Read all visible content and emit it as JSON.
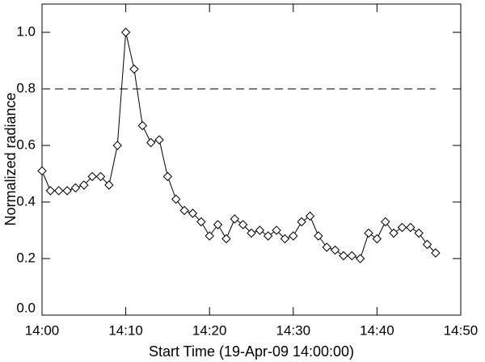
{
  "chart_data": {
    "type": "line",
    "xlabel": "Start Time (19-Apr-09 14:00:00)",
    "ylabel": "Normalized radiance",
    "x": [
      "14:00",
      "14:01",
      "14:02",
      "14:03",
      "14:04",
      "14:05",
      "14:06",
      "14:07",
      "14:08",
      "14:09",
      "14:10",
      "14:11",
      "14:12",
      "14:13",
      "14:14",
      "14:15",
      "14:16",
      "14:17",
      "14:18",
      "14:19",
      "14:20",
      "14:21",
      "14:22",
      "14:23",
      "14:24",
      "14:25",
      "14:26",
      "14:27",
      "14:28",
      "14:29",
      "14:30",
      "14:31",
      "14:32",
      "14:33",
      "14:34",
      "14:35",
      "14:36",
      "14:37",
      "14:38",
      "14:39",
      "14:40",
      "14:41",
      "14:42",
      "14:43",
      "14:44",
      "14:45",
      "14:46",
      "14:47"
    ],
    "series": [
      {
        "color": "#000000",
        "values": [
          0.51,
          0.44,
          0.44,
          0.44,
          0.45,
          0.46,
          0.49,
          0.49,
          0.46,
          0.6,
          1.0,
          0.87,
          0.67,
          0.61,
          0.62,
          0.49,
          0.41,
          0.37,
          0.36,
          0.33,
          0.28,
          0.32,
          0.27,
          0.34,
          0.32,
          0.29,
          0.3,
          0.28,
          0.3,
          0.27,
          0.28,
          0.33,
          0.35,
          0.28,
          0.24,
          0.23,
          0.21,
          0.21,
          0.2,
          0.29,
          0.27,
          0.33,
          0.29,
          0.31,
          0.31,
          0.29,
          0.25,
          0.22
        ]
      }
    ],
    "reference_line": {
      "value": 0.8,
      "style": "dashed",
      "color": "#555555"
    },
    "xlim": [
      "14:00",
      "14:50"
    ],
    "xticks": [
      "14:00",
      "14:10",
      "14:20",
      "14:30",
      "14:40",
      "14:50"
    ],
    "ylim": [
      0,
      1.1
    ],
    "yticks": [
      {
        "value": 0,
        "label": "0.0"
      },
      0.2,
      0.4,
      0.6,
      0.8,
      {
        "value": 1,
        "label": "1.0"
      }
    ]
  }
}
